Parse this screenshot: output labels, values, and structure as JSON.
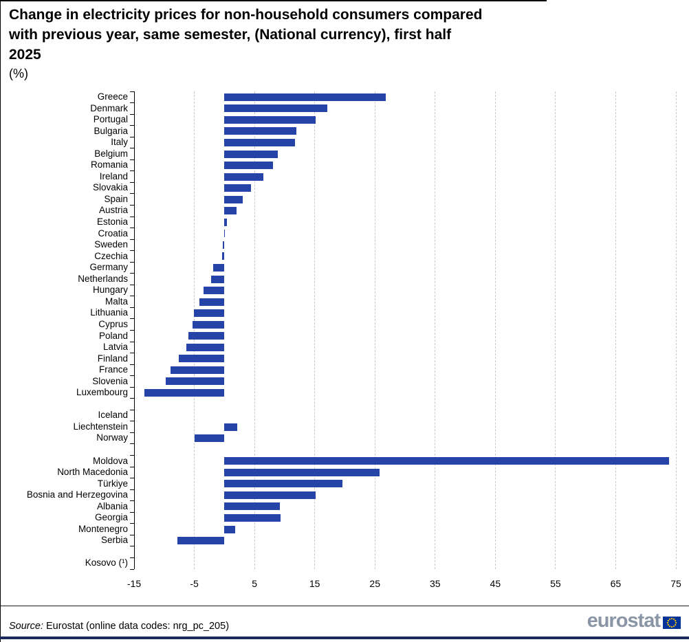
{
  "title": {
    "lines": [
      "Change in electricity prices for non-household consumers compared",
      "with previous year, same semester, (National currency), first half",
      "2025"
    ],
    "unit": "(%)"
  },
  "footer": {
    "source_label": "Source:",
    "source_rest": " Eurostat (online data codes: nrg_pc_205)",
    "logo_text": "eurostat",
    "logo_icon": "eu-flag-icon"
  },
  "colors": {
    "bar": "#2644A7",
    "axis": "#000000",
    "gridline": "#c9c9c9",
    "logo_gray": "#8A95A5",
    "flag_blue": "#003399",
    "flag_stars": "#FFCC00",
    "bottom_bar": "#1B2A5E"
  },
  "chart_data": {
    "type": "bar",
    "orientation": "horizontal",
    "title": "Change in electricity prices for non-household consumers compared with previous year, same semester, (National currency), first half 2025",
    "xlabel": "",
    "ylabel": "",
    "unit": "%",
    "xlim": [
      -15,
      75
    ],
    "xticks": [
      -15,
      -5,
      5,
      15,
      25,
      35,
      45,
      55,
      65,
      75
    ],
    "grid": "vertical-dashed",
    "legend": "none",
    "groups": [
      {
        "items": [
          {
            "label": "Greece",
            "value": 26.8
          },
          {
            "label": "Denmark",
            "value": 17.1
          },
          {
            "label": "Portugal",
            "value": 15.1
          },
          {
            "label": "Bulgaria",
            "value": 11.9
          },
          {
            "label": "Italy",
            "value": 11.7
          },
          {
            "label": "Belgium",
            "value": 8.9
          },
          {
            "label": "Romania",
            "value": 8.1
          },
          {
            "label": "Ireland",
            "value": 6.5
          },
          {
            "label": "Slovakia",
            "value": 4.4
          },
          {
            "label": "Spain",
            "value": 3.0
          },
          {
            "label": "Austria",
            "value": 2.0
          },
          {
            "label": "Estonia",
            "value": 0.4
          },
          {
            "label": "Croatia",
            "value": 0.1
          },
          {
            "label": "Sweden",
            "value": -0.3
          },
          {
            "label": "Czechia",
            "value": -0.4
          },
          {
            "label": "Germany",
            "value": -1.9
          },
          {
            "label": "Netherlands",
            "value": -2.2
          },
          {
            "label": "Hungary",
            "value": -3.5
          },
          {
            "label": "Malta",
            "value": -4.2
          },
          {
            "label": "Lithuania",
            "value": -5.1
          },
          {
            "label": "Cyprus",
            "value": -5.3
          },
          {
            "label": "Poland",
            "value": -6.0
          },
          {
            "label": "Latvia",
            "value": -6.3
          },
          {
            "label": "Finland",
            "value": -7.6
          },
          {
            "label": "France",
            "value": -8.9
          },
          {
            "label": "Slovenia",
            "value": -9.7
          },
          {
            "label": "Luxembourg",
            "value": -13.3
          }
        ]
      },
      {
        "items": [
          {
            "label": "Iceland",
            "value": 0
          },
          {
            "label": "Liechtenstein",
            "value": 2.1
          },
          {
            "label": "Norway",
            "value": -4.9
          }
        ]
      },
      {
        "items": [
          {
            "label": "Moldova",
            "value": 73.9
          },
          {
            "label": "North Macedonia",
            "value": 25.8
          },
          {
            "label": "Türkiye",
            "value": 19.6
          },
          {
            "label": "Bosnia and Herzegovina",
            "value": 15.1
          },
          {
            "label": "Albania",
            "value": 9.2
          },
          {
            "label": "Georgia",
            "value": 9.3
          },
          {
            "label": "Montenegro",
            "value": 1.8
          },
          {
            "label": "Serbia",
            "value": -7.8
          }
        ]
      },
      {
        "items": [
          {
            "label": "Kosovo (¹)",
            "value": null
          }
        ]
      }
    ]
  }
}
